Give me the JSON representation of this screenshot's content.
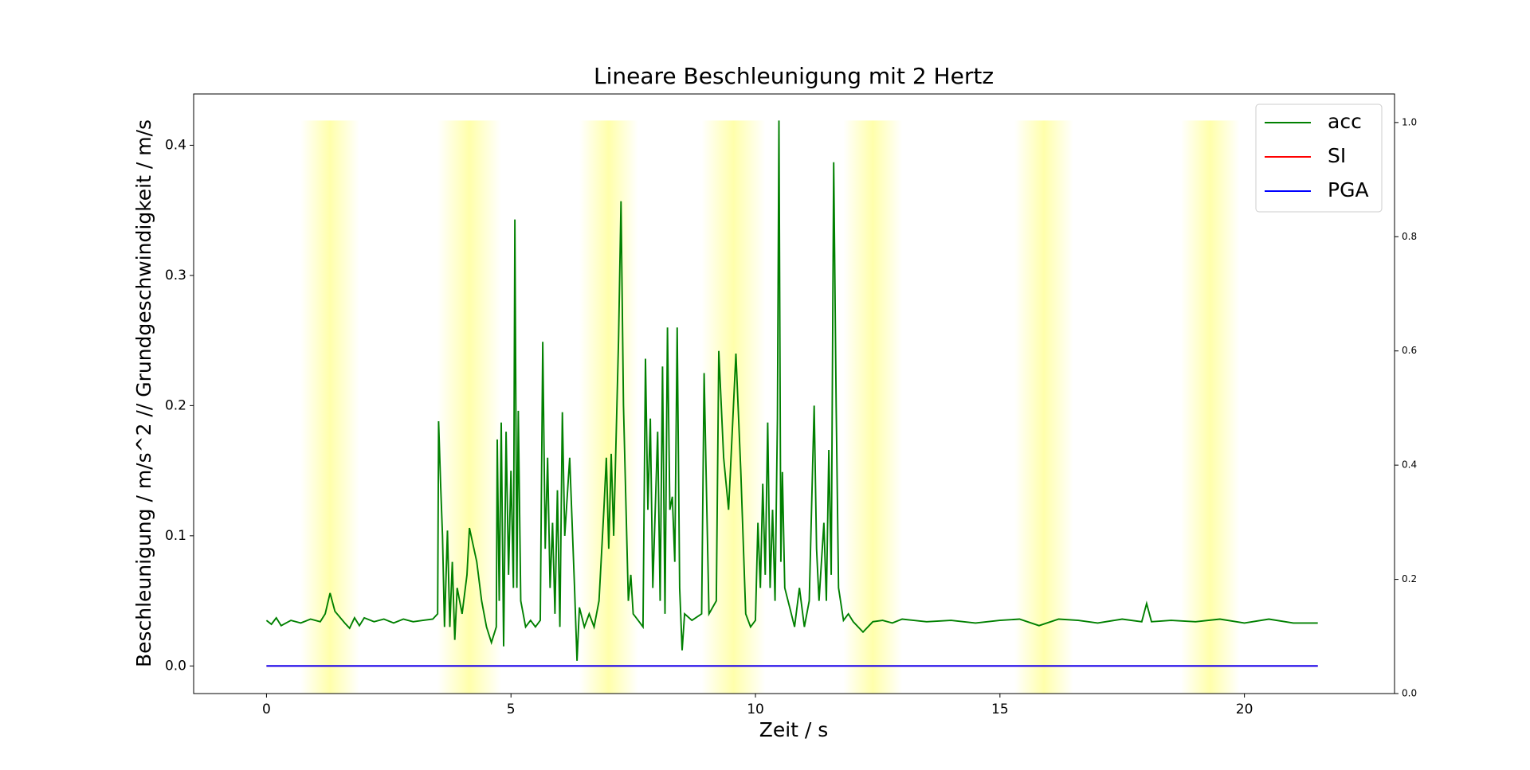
{
  "chart_data": {
    "type": "line",
    "title": "Lineare Beschleunigung mit 2 Hertz",
    "x_label": "Zeit / s",
    "y_label": "Beschleunigung / m/s^2 // Grundgeschwindigkeit / m/s",
    "xlim": [
      -1.49,
      23.07
    ],
    "ylim": [
      -0.0212,
      0.4394
    ],
    "y2lim": [
      0,
      1.05
    ],
    "xticks": [
      0,
      5,
      10,
      15,
      20
    ],
    "yticks": [
      {
        "value": 0,
        "label": "0.0"
      },
      0.1,
      0.2,
      0.3,
      0.4
    ],
    "y2ticks": [
      {
        "value": 0,
        "label": "0.0"
      },
      0.2,
      0.4,
      0.6,
      0.8,
      {
        "value": 1,
        "label": "1.0"
      }
    ],
    "legend": "upper right",
    "shaded_regions": {
      "color": "#ffff66",
      "top": 0.419,
      "spans": [
        [
          0.7,
          1.9
        ],
        [
          3.5,
          4.8
        ],
        [
          6.4,
          7.6
        ],
        [
          8.9,
          10.2
        ],
        [
          11.8,
          13.0
        ],
        [
          15.3,
          16.5
        ],
        [
          18.7,
          19.9
        ]
      ]
    },
    "series": [
      {
        "name": "acc",
        "color": "#008000",
        "x": [
          0,
          0.1,
          0.2,
          0.3,
          0.5,
          0.7,
          0.9,
          1.1,
          1.2,
          1.3,
          1.4,
          1.6,
          1.7,
          1.8,
          1.9,
          2.0,
          2.2,
          2.4,
          2.6,
          2.8,
          3.0,
          3.2,
          3.4,
          3.5,
          3.52,
          3.56,
          3.6,
          3.64,
          3.7,
          3.75,
          3.8,
          3.85,
          3.9,
          4.0,
          4.1,
          4.15,
          4.3,
          4.4,
          4.5,
          4.6,
          4.7,
          4.72,
          4.76,
          4.8,
          4.85,
          4.9,
          4.95,
          5.0,
          5.05,
          5.08,
          5.12,
          5.15,
          5.2,
          5.3,
          5.4,
          5.5,
          5.6,
          5.65,
          5.7,
          5.75,
          5.8,
          5.85,
          5.9,
          5.95,
          6.0,
          6.05,
          6.1,
          6.2,
          6.3,
          6.35,
          6.4,
          6.5,
          6.6,
          6.7,
          6.8,
          6.9,
          6.95,
          7.0,
          7.05,
          7.1,
          7.2,
          7.25,
          7.3,
          7.4,
          7.45,
          7.5,
          7.6,
          7.7,
          7.75,
          7.8,
          7.85,
          7.9,
          8.0,
          8.05,
          8.1,
          8.15,
          8.2,
          8.25,
          8.3,
          8.35,
          8.4,
          8.45,
          8.5,
          8.55,
          8.7,
          8.9,
          8.95,
          9.0,
          9.05,
          9.2,
          9.25,
          9.35,
          9.45,
          9.6,
          9.7,
          9.8,
          9.9,
          10.0,
          10.05,
          10.1,
          10.15,
          10.2,
          10.25,
          10.3,
          10.35,
          10.4,
          10.45,
          10.48,
          10.52,
          10.55,
          10.6,
          10.7,
          10.8,
          10.9,
          11.0,
          11.1,
          11.2,
          11.25,
          11.3,
          11.4,
          11.45,
          11.5,
          11.55,
          11.6,
          11.65,
          11.7,
          11.8,
          11.9,
          12.0,
          12.2,
          12.4,
          12.6,
          12.8,
          13.0,
          13.5,
          14.0,
          14.5,
          15.0,
          15.4,
          15.8,
          16.2,
          16.6,
          17.0,
          17.5,
          17.9,
          18.0,
          18.1,
          18.5,
          19.0,
          19.5,
          20.0,
          20.5,
          21.0,
          21.5
        ],
        "values": [
          0.035,
          0.032,
          0.037,
          0.031,
          0.035,
          0.033,
          0.036,
          0.034,
          0.04,
          0.056,
          0.042,
          0.033,
          0.029,
          0.037,
          0.031,
          0.037,
          0.034,
          0.036,
          0.033,
          0.036,
          0.034,
          0.035,
          0.036,
          0.04,
          0.188,
          0.14,
          0.1,
          0.03,
          0.104,
          0.03,
          0.08,
          0.02,
          0.06,
          0.04,
          0.07,
          0.106,
          0.08,
          0.05,
          0.03,
          0.018,
          0.03,
          0.174,
          0.05,
          0.187,
          0.015,
          0.18,
          0.07,
          0.15,
          0.06,
          0.343,
          0.06,
          0.196,
          0.05,
          0.03,
          0.035,
          0.03,
          0.035,
          0.249,
          0.09,
          0.16,
          0.06,
          0.11,
          0.04,
          0.135,
          0.03,
          0.195,
          0.1,
          0.16,
          0.06,
          0.004,
          0.045,
          0.03,
          0.04,
          0.03,
          0.05,
          0.12,
          0.16,
          0.09,
          0.163,
          0.1,
          0.25,
          0.357,
          0.2,
          0.05,
          0.07,
          0.04,
          0.035,
          0.03,
          0.236,
          0.12,
          0.19,
          0.06,
          0.18,
          0.05,
          0.23,
          0.04,
          0.26,
          0.12,
          0.13,
          0.08,
          0.26,
          0.06,
          0.012,
          0.04,
          0.035,
          0.04,
          0.225,
          0.13,
          0.04,
          0.05,
          0.242,
          0.16,
          0.12,
          0.24,
          0.15,
          0.04,
          0.03,
          0.035,
          0.11,
          0.06,
          0.14,
          0.07,
          0.187,
          0.06,
          0.12,
          0.05,
          0.19,
          0.419,
          0.08,
          0.149,
          0.06,
          0.045,
          0.03,
          0.06,
          0.03,
          0.05,
          0.2,
          0.09,
          0.05,
          0.11,
          0.05,
          0.166,
          0.07,
          0.387,
          0.2,
          0.06,
          0.035,
          0.04,
          0.034,
          0.026,
          0.034,
          0.035,
          0.033,
          0.036,
          0.034,
          0.035,
          0.033,
          0.035,
          0.036,
          0.031,
          0.036,
          0.035,
          0.033,
          0.036,
          0.034,
          0.048,
          0.034,
          0.035,
          0.034,
          0.036,
          0.033,
          0.036,
          0.033,
          0.033
        ]
      },
      {
        "name": "SI",
        "color": "#ff0000",
        "x": [
          0,
          21.5
        ],
        "values": [
          0,
          0
        ]
      },
      {
        "name": "PGA",
        "color": "#0000ff",
        "x": [
          0,
          21.5
        ],
        "values": [
          0,
          0
        ]
      }
    ]
  }
}
